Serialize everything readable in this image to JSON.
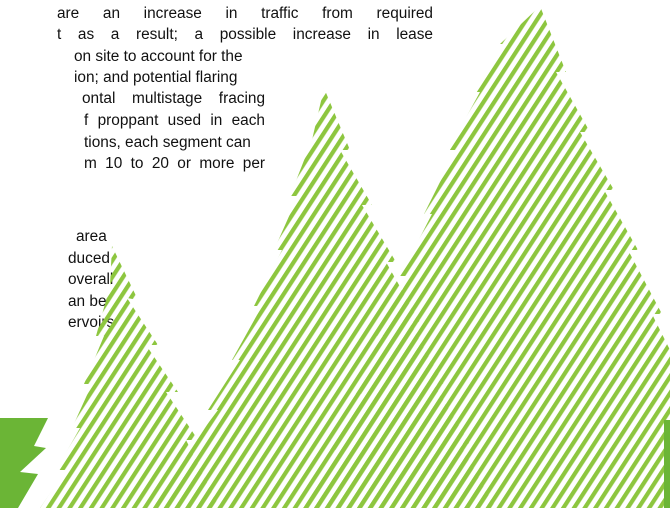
{
  "body_text": {
    "paragraph_1": [
      "are an increase in traffic from required",
      "t as a result; a possible increase in lease",
      "on site to account for the",
      "ion; and potential flaring",
      "ontal multistage fracing",
      "f proppant used in each",
      "tions, each segment can",
      "m 10 to 20 or more per"
    ],
    "paragraph_2": [
      "area",
      "duced",
      "overall",
      "an be",
      "ervoirs"
    ]
  },
  "colors": {
    "tree_stripe": "#8DC63F",
    "accent_block": "#6BB536",
    "text": "#111111",
    "background": "#FFFFFF"
  },
  "artwork": {
    "description_icon": "striped-pine-tree-silhouettes"
  }
}
